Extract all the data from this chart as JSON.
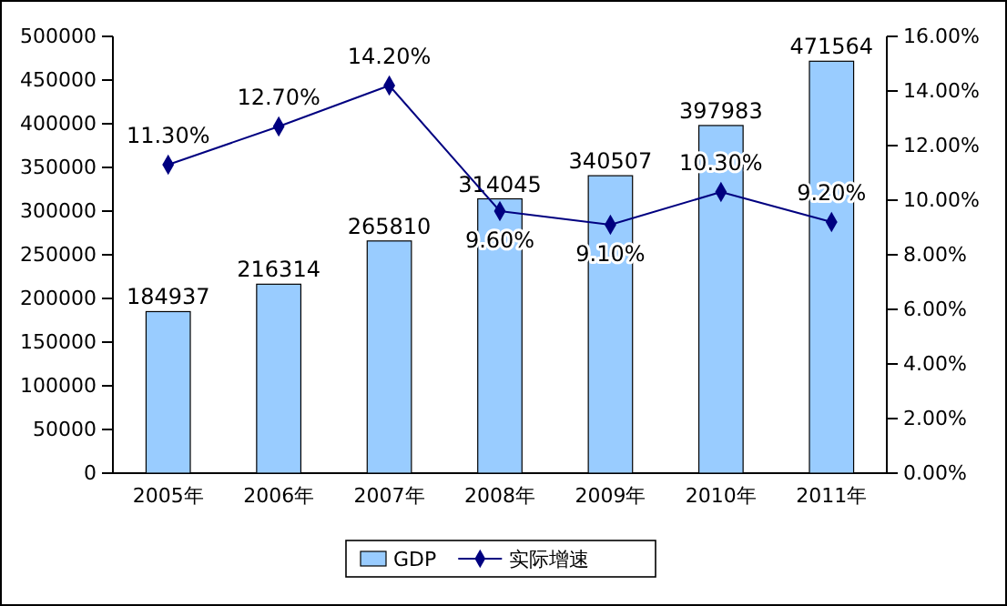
{
  "chart_data": {
    "type": "bar",
    "categories": [
      "2005年",
      "2006年",
      "2007年",
      "2008年",
      "2009年",
      "2010年",
      "2011年"
    ],
    "series": [
      {
        "name": "GDP",
        "color": "#99ccff",
        "values": [
          184937,
          216314,
          265810,
          314045,
          340507,
          397983,
          471564
        ],
        "value_labels": [
          "184937",
          "216314",
          "265810",
          "314045",
          "340507",
          "397983",
          "471564"
        ]
      },
      {
        "name": "实际增速",
        "type": "line",
        "axis": "y2",
        "color": "#000080",
        "marker": "diamond",
        "values": [
          11.3,
          12.7,
          14.2,
          9.6,
          9.1,
          10.3,
          9.2
        ],
        "value_labels": [
          "11.30%",
          "12.70%",
          "14.20%",
          "9.60%",
          "9.10%",
          "10.30%",
          "9.20%"
        ]
      }
    ],
    "ylim": [
      0,
      500000
    ],
    "yticks": [
      0,
      50000,
      100000,
      150000,
      200000,
      250000,
      300000,
      350000,
      400000,
      450000,
      500000
    ],
    "y2lim": [
      0,
      16
    ],
    "y2ticks": [
      {
        "value": 0,
        "label": "0.00%"
      },
      {
        "value": 2,
        "label": "2.00%"
      },
      {
        "value": 4,
        "label": "4.00%"
      },
      {
        "value": 6,
        "label": "6.00%"
      },
      {
        "value": 8,
        "label": "8.00%"
      },
      {
        "value": 10,
        "label": "10.00%"
      },
      {
        "value": 12,
        "label": "12.00%"
      },
      {
        "value": 14,
        "label": "14.00%"
      },
      {
        "value": 16,
        "label": "16.00%"
      }
    ],
    "legend": "bottom",
    "grid": false
  }
}
